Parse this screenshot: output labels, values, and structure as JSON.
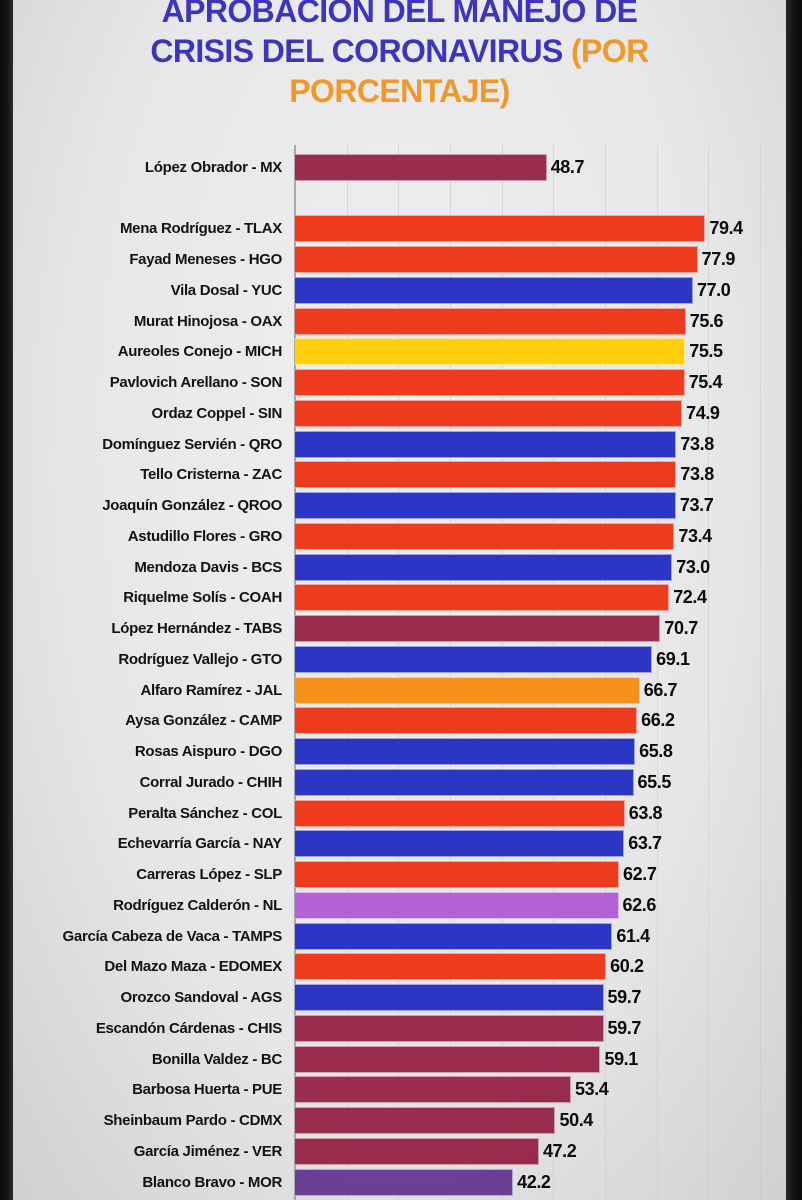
{
  "title": {
    "main": "APROBACIÓN DEL MANEJO DE CRISIS DEL CORONAVIRUS ",
    "highlight": "(POR PORCENTAJE)"
  },
  "colors": {
    "title_blue": "#3D35BE",
    "title_orange": "#F0982A",
    "maroon": "#9A2C4E",
    "red": "#EE3A1D",
    "blue": "#2B36C4",
    "yellow": "#FFCF10",
    "orange": "#F6911E",
    "light_purple": "#B262D4",
    "purple": "#6C4199"
  },
  "chart_data": {
    "type": "bar",
    "orientation": "horizontal",
    "title": "APROBACIÓN DEL MANEJO DE CRISIS DEL CORONAVIRUS (POR PORCENTAJE)",
    "xlabel": "",
    "ylabel": "",
    "xlim": [
      0,
      95
    ],
    "gridline_interval": 10,
    "grid": true,
    "value_labels": true,
    "spacer_after_index": 0,
    "bars": [
      {
        "label": "López Obrador - MX",
        "value": 48.7,
        "color": "maroon"
      },
      {
        "label": "Mena Rodríguez - TLAX",
        "value": 79.4,
        "color": "red"
      },
      {
        "label": "Fayad Meneses - HGO",
        "value": 77.9,
        "color": "red"
      },
      {
        "label": "Vila Dosal - YUC",
        "value": 77.0,
        "color": "blue"
      },
      {
        "label": "Murat Hinojosa - OAX",
        "value": 75.6,
        "color": "red"
      },
      {
        "label": "Aureoles Conejo - MICH",
        "value": 75.5,
        "color": "yellow"
      },
      {
        "label": "Pavlovich Arellano - SON",
        "value": 75.4,
        "color": "red"
      },
      {
        "label": "Ordaz Coppel - SIN",
        "value": 74.9,
        "color": "red"
      },
      {
        "label": "Domínguez Servién - QRO",
        "value": 73.8,
        "color": "blue"
      },
      {
        "label": "Tello Cristerna - ZAC",
        "value": 73.8,
        "color": "red"
      },
      {
        "label": "Joaquín González - QROO",
        "value": 73.7,
        "color": "blue"
      },
      {
        "label": "Astudillo Flores - GRO",
        "value": 73.4,
        "color": "red"
      },
      {
        "label": "Mendoza Davis - BCS",
        "value": 73.0,
        "color": "blue"
      },
      {
        "label": "Riquelme Solís - COAH",
        "value": 72.4,
        "color": "red"
      },
      {
        "label": "López Hernández - TABS",
        "value": 70.7,
        "color": "maroon"
      },
      {
        "label": "Rodríguez Vallejo - GTO",
        "value": 69.1,
        "color": "blue"
      },
      {
        "label": "Alfaro Ramírez - JAL",
        "value": 66.7,
        "color": "orange"
      },
      {
        "label": "Aysa González - CAMP",
        "value": 66.2,
        "color": "red"
      },
      {
        "label": "Rosas Aispuro - DGO",
        "value": 65.8,
        "color": "blue"
      },
      {
        "label": "Corral Jurado - CHIH",
        "value": 65.5,
        "color": "blue"
      },
      {
        "label": "Peralta Sánchez - COL",
        "value": 63.8,
        "color": "red"
      },
      {
        "label": "Echevarría García - NAY",
        "value": 63.7,
        "color": "blue"
      },
      {
        "label": "Carreras López - SLP",
        "value": 62.7,
        "color": "red"
      },
      {
        "label": "Rodríguez Calderón - NL",
        "value": 62.6,
        "color": "light_purple"
      },
      {
        "label": "García Cabeza de Vaca - TAMPS",
        "value": 61.4,
        "color": "blue"
      },
      {
        "label": "Del Mazo Maza - EDOMEX",
        "value": 60.2,
        "color": "red"
      },
      {
        "label": "Orozco Sandoval - AGS",
        "value": 59.7,
        "color": "blue"
      },
      {
        "label": "Escandón Cárdenas - CHIS",
        "value": 59.7,
        "color": "maroon"
      },
      {
        "label": "Bonilla Valdez - BC",
        "value": 59.1,
        "color": "maroon"
      },
      {
        "label": "Barbosa Huerta - PUE",
        "value": 53.4,
        "color": "maroon"
      },
      {
        "label": "Sheinbaum Pardo - CDMX",
        "value": 50.4,
        "color": "maroon"
      },
      {
        "label": "García Jiménez - VER",
        "value": 47.2,
        "color": "maroon"
      },
      {
        "label": "Blanco Bravo - MOR",
        "value": 42.2,
        "color": "purple"
      }
    ]
  }
}
